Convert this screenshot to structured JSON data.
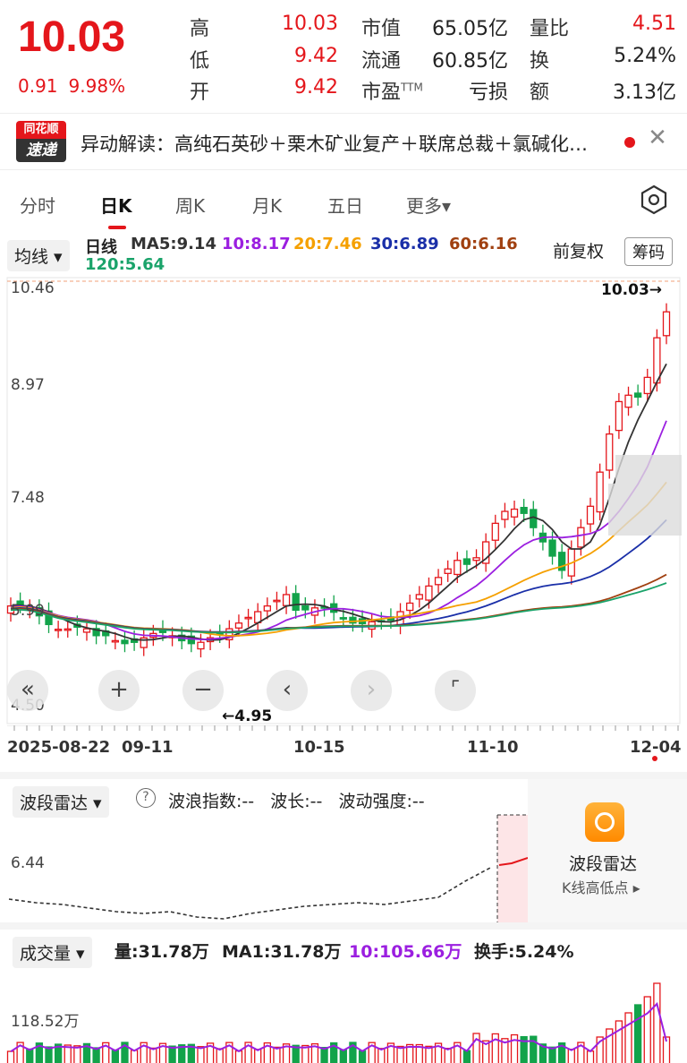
{
  "quote": {
    "price": "10.03",
    "change": "0.91",
    "change_pct": "9.98%",
    "rows": [
      {
        "l1": "高",
        "v1": "10.03",
        "c1": "#e4161b",
        "l2": "市值",
        "v2": "65.05亿",
        "l3": "量比",
        "v3": "4.51",
        "c3": "#e4161b"
      },
      {
        "l1": "低",
        "v1": "9.42",
        "c1": "#e4161b",
        "l2": "流通",
        "v2": "60.85亿",
        "l3": "换",
        "v3": "5.24%",
        "c3": "#222"
      },
      {
        "l1": "开",
        "v1": "9.42",
        "c1": "#e4161b",
        "l2": "市盈",
        "l2_sup": "TTM",
        "v2": "亏损",
        "l3": "额",
        "v3": "3.13亿",
        "c3": "#222"
      }
    ]
  },
  "news": {
    "logo_top": "同花顺",
    "logo_bottom": "速递",
    "text": "异动解读：高纯石英砂＋栗木矿业复产＋联席总裁＋氯碱化…",
    "close": "✕"
  },
  "tabs": [
    {
      "label": "分时",
      "active": false
    },
    {
      "label": "日K",
      "active": true
    },
    {
      "label": "周K",
      "active": false
    },
    {
      "label": "月K",
      "active": false
    },
    {
      "label": "五日",
      "active": false
    },
    {
      "label": "更多▾",
      "active": false
    }
  ],
  "ma": {
    "selector": "均线 ▾",
    "period": "日线",
    "items": [
      {
        "text": "MA5:9.14",
        "color": "#333333"
      },
      {
        "text": "10:8.17",
        "color": "#9b1fe0"
      },
      {
        "text": "20:7.46",
        "color": "#f5a000"
      },
      {
        "text": "30:6.89",
        "color": "#1a2fa8"
      },
      {
        "text": "60:6.16",
        "color": "#a04010"
      },
      {
        "text": "120:5.64",
        "color": "#1aa36a"
      }
    ],
    "adjust": "前复权",
    "chips": "筹码"
  },
  "kchart": {
    "price_ticks": [
      "10.46",
      "8.97",
      "7.48",
      "5.99",
      "4.50"
    ],
    "dates": [
      "2025-08-22",
      "09-11",
      "10-15",
      "11-10",
      "12-04"
    ],
    "high_marker": "10.03→",
    "low_marker": "←4.95",
    "nav": [
      "«",
      "+",
      "−",
      "‹",
      "›",
      "⌜"
    ]
  },
  "wave": {
    "selector": "波段雷达 ▾",
    "help": "?",
    "stats": "波浪指数:--   波长:--   波动强度:--",
    "tick": "6.44",
    "card_title": "波段雷达",
    "card_sub": "K线高低点 ▸"
  },
  "volume": {
    "selector": "成交量 ▾",
    "stats": [
      {
        "text": "量:31.78万",
        "color": "#222222"
      },
      {
        "text": "MA1:31.78万",
        "color": "#222222"
      },
      {
        "text": "10:105.66万",
        "color": "#9b1fe0"
      },
      {
        "text": "换手:5.24%",
        "color": "#222222"
      }
    ],
    "tick": "118.52万"
  },
  "colors": {
    "up": "#e4161b",
    "down": "#12a34a"
  }
}
